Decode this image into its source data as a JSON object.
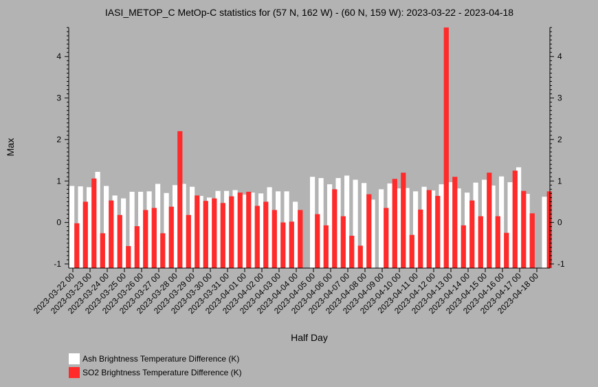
{
  "chart_data": {
    "type": "bar",
    "title": "IASI_METOP_C MetOp-C statistics for (57 N, 162 W) - (60 N, 159 W): 2023-03-22 - 2023-04-18",
    "xlabel": "Half Day",
    "ylabel": "Max",
    "ylim": [
      -1.1,
      4.7
    ],
    "yticks": [
      "-1",
      "0",
      "1",
      "2",
      "3",
      "4"
    ],
    "xticks": [
      "2023-03-22 00",
      "2023-03-23 00",
      "2023-03-24 00",
      "2023-03-25 00",
      "2023-03-26 00",
      "2023-03-27 00",
      "2023-03-28 00",
      "2023-03-29 00",
      "2023-03-30 00",
      "2023-03-31 00",
      "2023-04-01 00",
      "2023-04-02 00",
      "2023-04-03 00",
      "2023-04-04 00",
      "2023-04-05 00",
      "2023-04-06 00",
      "2023-04-07 00",
      "2023-04-08 00",
      "2023-04-09 00",
      "2023-04-10 00",
      "2023-04-11 00",
      "2023-04-12 00",
      "2023-04-13 00",
      "2023-04-14 00",
      "2023-04-15 00",
      "2023-04-16 00",
      "2023-04-17 00",
      "2023-04-18 00"
    ],
    "series": [
      {
        "name": "Ash Brightness Temperature Difference (K)",
        "color": "#ffffff",
        "values": [
          0.88,
          0.87,
          0.85,
          1.22,
          0.88,
          0.65,
          0.58,
          0.74,
          0.74,
          0.75,
          0.93,
          0.71,
          0.9,
          0.93,
          0.86,
          0.64,
          0.6,
          0.76,
          0.76,
          0.78,
          0.67,
          0.72,
          0.7,
          0.85,
          0.75,
          0.75,
          0.5,
          null,
          1.1,
          1.07,
          0.92,
          1.07,
          1.13,
          1.03,
          0.95,
          0.55,
          0.8,
          0.94,
          0.82,
          0.83,
          0.75,
          0.86,
          0.77,
          0.92,
          0.97,
          0.82,
          0.72,
          0.96,
          1.03,
          0.89,
          1.11,
          0.97,
          1.33,
          0.69,
          null,
          0.62
        ]
      },
      {
        "name": "SO2 Brightness Temperature Difference (K)",
        "color": "#ff2a2a",
        "values": [
          -0.02,
          0.5,
          1.06,
          -0.26,
          0.53,
          0.18,
          -0.57,
          -0.09,
          0.3,
          0.35,
          -0.26,
          0.38,
          2.2,
          0.18,
          0.65,
          0.52,
          0.58,
          0.47,
          0.63,
          0.72,
          0.74,
          0.4,
          0.5,
          0.3,
          0.0,
          0.02,
          0.3,
          null,
          0.2,
          -0.07,
          0.8,
          0.15,
          -0.32,
          -0.56,
          0.68,
          null,
          0.35,
          1.05,
          1.2,
          -0.3,
          0.31,
          0.78,
          0.64,
          4.7,
          1.1,
          -0.07,
          0.53,
          0.15,
          1.2,
          0.15,
          -0.25,
          1.25,
          0.76,
          0.22,
          null,
          0.75
        ]
      }
    ],
    "legend": "bottom-left"
  }
}
